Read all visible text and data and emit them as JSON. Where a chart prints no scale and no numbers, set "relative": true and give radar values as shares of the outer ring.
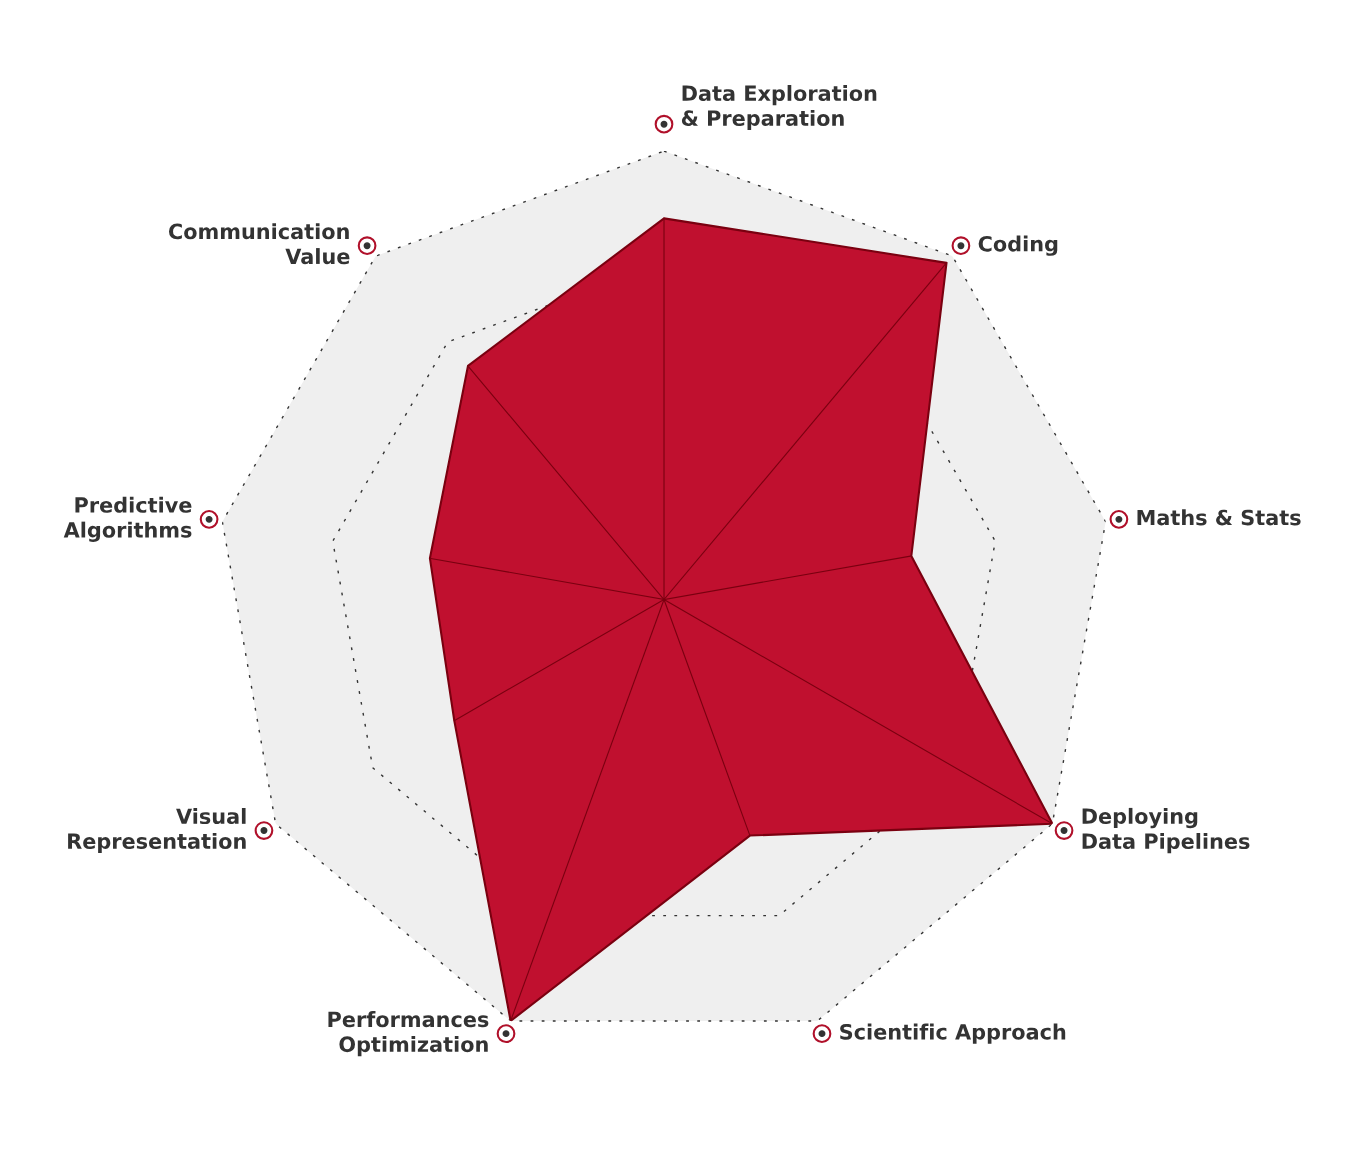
{
  "chart_data": {
    "type": "radar",
    "relative": true,
    "grid": true,
    "marker": "none",
    "legend": false,
    "categories": [
      "Data Exploration\n& Preparation",
      "Coding",
      "Maths & Stats",
      "Deploying\nData Pipelines",
      "Scientific Approach",
      "Performances\nOptimization",
      "Visual\nRepresentation",
      "Predictive\nAlgorithms",
      "Communication\nValue"
    ],
    "series": [
      {
        "color": "#c0102f",
        "values": [
          0.85,
          0.98,
          0.56,
          1.0,
          0.56,
          1.0,
          0.54,
          0.53,
          0.68
        ]
      }
    ]
  }
}
